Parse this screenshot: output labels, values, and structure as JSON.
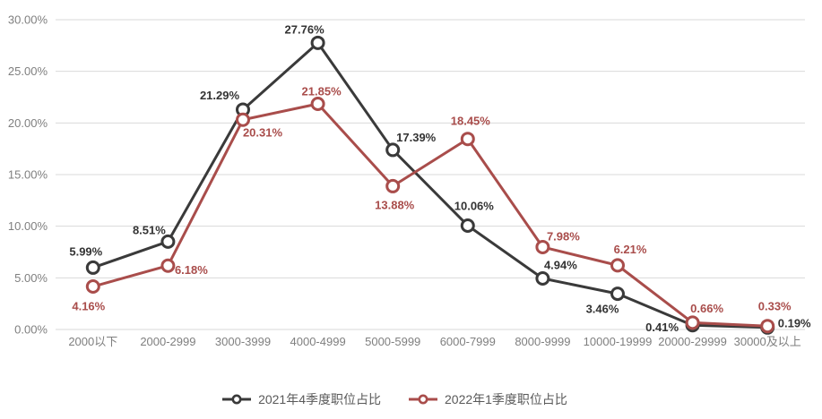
{
  "chart_data": {
    "type": "line",
    "title": "",
    "xlabel": "",
    "ylabel": "",
    "categories": [
      "2000以下",
      "2000-2999",
      "3000-3999",
      "4000-4999",
      "5000-5999",
      "6000-7999",
      "8000-9999",
      "10000-19999",
      "20000-29999",
      "30000及以上"
    ],
    "series": [
      {
        "name": "2021年4季度职位占比",
        "color": "#3A3A3A",
        "label_color": "#333333",
        "values": [
          5.99,
          8.51,
          21.29,
          27.76,
          17.39,
          10.06,
          4.94,
          3.46,
          0.41,
          0.19
        ],
        "value_labels": [
          "5.99%",
          "8.51%",
          "21.29%",
          "27.76%",
          "17.39%",
          "10.06%",
          "4.94%",
          "3.46%",
          "0.41%",
          "0.19%"
        ]
      },
      {
        "name": "2022年1季度职位占比",
        "color": "#A94D4B",
        "label_color": "#A94D4B",
        "values": [
          4.16,
          6.18,
          20.31,
          21.85,
          13.88,
          18.45,
          7.98,
          6.21,
          0.66,
          0.33
        ],
        "value_labels": [
          "4.16%",
          "6.18%",
          "20.31%",
          "21.85%",
          "13.88%",
          "18.45%",
          "7.98%",
          "6.21%",
          "0.66%",
          "0.33%"
        ]
      }
    ],
    "ylim": [
      0,
      30
    ],
    "y_ticks": [
      "0.00%",
      "5.00%",
      "10.00%",
      "15.00%",
      "20.00%",
      "25.00%",
      "30.00%"
    ],
    "grid": true,
    "legend_position": "bottom",
    "colors": {
      "background": "#FFFFFF",
      "grid": "#D9D9D9",
      "axis_text": "#7F7F7F",
      "legend_text": "#595959",
      "marker_fill": "#FFFFFF"
    }
  }
}
